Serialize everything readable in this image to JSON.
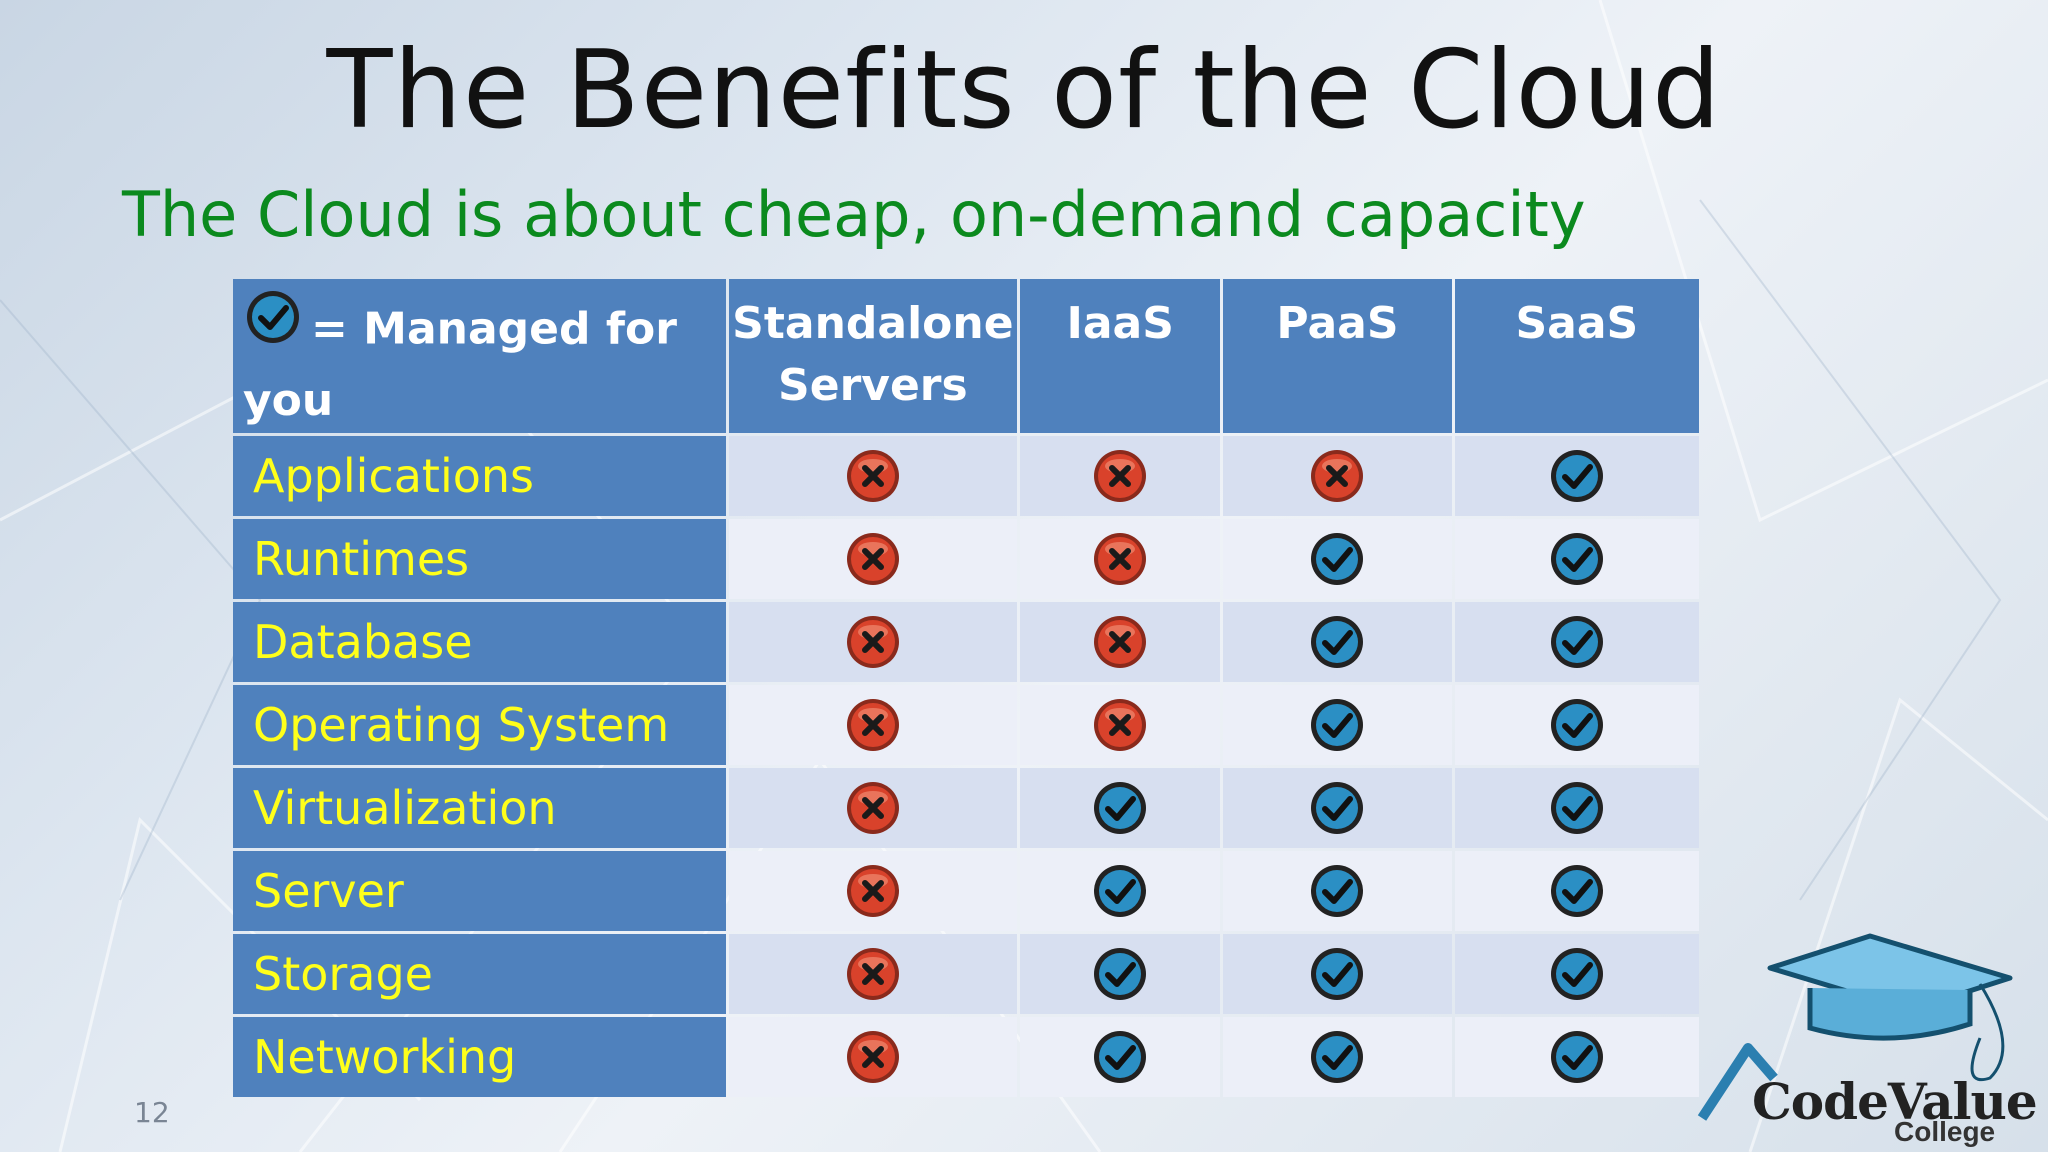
{
  "title": "The Benefits of the Cloud",
  "subtitle": "The Cloud is about cheap, on-demand capacity",
  "legend": {
    "icon": "check-icon",
    "label": "= Managed for you"
  },
  "columns": [
    "Standalone Servers",
    "IaaS",
    "PaaS",
    "SaaS"
  ],
  "rows": [
    {
      "label": "Applications",
      "values": [
        "x",
        "x",
        "x",
        "check"
      ]
    },
    {
      "label": "Runtimes",
      "values": [
        "x",
        "x",
        "check",
        "check"
      ]
    },
    {
      "label": "Database",
      "values": [
        "x",
        "x",
        "check",
        "check"
      ]
    },
    {
      "label": "Operating System",
      "values": [
        "x",
        "x",
        "check",
        "check"
      ]
    },
    {
      "label": "Virtualization",
      "values": [
        "x",
        "check",
        "check",
        "check"
      ]
    },
    {
      "label": "Server",
      "values": [
        "x",
        "check",
        "check",
        "check"
      ]
    },
    {
      "label": "Storage",
      "values": [
        "x",
        "check",
        "check",
        "check"
      ]
    },
    {
      "label": "Networking",
      "values": [
        "x",
        "check",
        "check",
        "check"
      ]
    }
  ],
  "page_number": "12",
  "logo": {
    "name": "CodeValue",
    "sub": "College"
  },
  "colors": {
    "header_bg": "#4f81bd",
    "row_label_text": "#ffff1a",
    "subtitle": "#0b8a1e",
    "check": "#2b8fc4",
    "cross": "#d9422b"
  }
}
